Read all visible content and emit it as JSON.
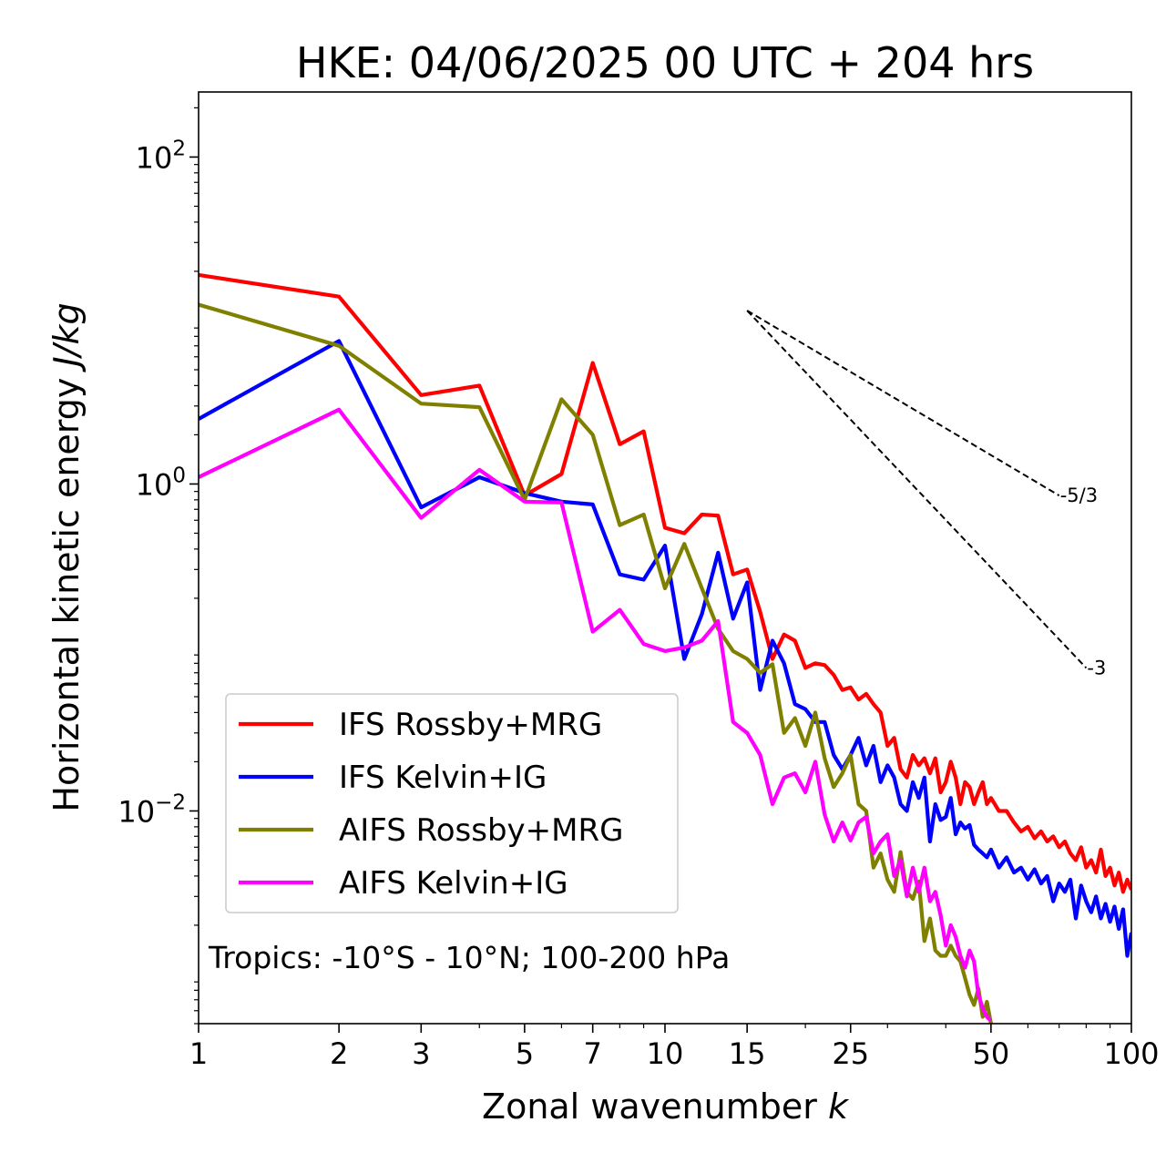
{
  "chart_data": {
    "type": "line",
    "title": "HKE: 04/06/2025 00 UTC + 204 hrs",
    "xlabel": "Zonal wavenumber k",
    "ylabel": "Horizontal kinetic energy J/kg",
    "xscale": "log",
    "yscale": "log",
    "xlim": [
      1,
      100
    ],
    "ylim": [
      0.0005,
      250
    ],
    "x_ticks": [
      1,
      2,
      3,
      5,
      7,
      10,
      15,
      25,
      50,
      100
    ],
    "x_tick_labels": [
      "1",
      "2",
      "3",
      "5",
      "7",
      "10",
      "15",
      "25",
      "50",
      "100"
    ],
    "y_ticks": [
      0.01,
      1,
      100
    ],
    "y_tick_labels": [
      "10^{-2}",
      "10^{0}",
      "10^{2}"
    ],
    "grid": false,
    "legend": "lower-left",
    "annotation": "Tropics: -10°S - 10°N; 100-200 hPa",
    "reference_slopes": [
      {
        "label": "-5/3",
        "x": [
          15,
          70
        ],
        "y": [
          11.5,
          0.85
        ]
      },
      {
        "label": "-3",
        "x": [
          15,
          80
        ],
        "y": [
          11.5,
          0.075
        ]
      }
    ],
    "series": [
      {
        "name": "IFS Rossby+MRG",
        "color": "#ff0000",
        "x": [
          1,
          2,
          3,
          4,
          5,
          6,
          7,
          8,
          9,
          10,
          11,
          12,
          13,
          14,
          15,
          16,
          17,
          18,
          19,
          20,
          21,
          22,
          23,
          24,
          25,
          26,
          27,
          28,
          29,
          30,
          31,
          32,
          33,
          34,
          35,
          36,
          37,
          38,
          39,
          40,
          41,
          42,
          43,
          44,
          45,
          46,
          47,
          48,
          49,
          50,
          52,
          54,
          56,
          58,
          60,
          62,
          64,
          66,
          68,
          70,
          72,
          74,
          76,
          78,
          80,
          82,
          84,
          86,
          88,
          90,
          92,
          94,
          96,
          98,
          100
        ],
        "values": [
          19,
          14,
          3.5,
          4.0,
          0.85,
          1.15,
          5.5,
          1.75,
          2.1,
          0.54,
          0.5,
          0.65,
          0.64,
          0.28,
          0.3,
          0.165,
          0.085,
          0.12,
          0.11,
          0.075,
          0.08,
          0.078,
          0.068,
          0.055,
          0.057,
          0.048,
          0.052,
          0.045,
          0.04,
          0.025,
          0.028,
          0.018,
          0.016,
          0.022,
          0.019,
          0.021,
          0.017,
          0.021,
          0.013,
          0.015,
          0.02,
          0.016,
          0.011,
          0.015,
          0.014,
          0.011,
          0.013,
          0.015,
          0.011,
          0.012,
          0.01,
          0.01,
          0.0085,
          0.0075,
          0.008,
          0.0068,
          0.0075,
          0.0065,
          0.007,
          0.006,
          0.0065,
          0.0055,
          0.005,
          0.006,
          0.0045,
          0.005,
          0.0042,
          0.0058,
          0.004,
          0.0045,
          0.0035,
          0.0042,
          0.0032,
          0.0038,
          0.0033
        ]
      },
      {
        "name": "IFS Kelvin+IG",
        "color": "#0000ff",
        "x": [
          1,
          2,
          3,
          4,
          5,
          6,
          7,
          8,
          9,
          10,
          11,
          12,
          13,
          14,
          15,
          16,
          17,
          18,
          19,
          20,
          21,
          22,
          23,
          24,
          25,
          26,
          27,
          28,
          29,
          30,
          31,
          32,
          33,
          34,
          35,
          36,
          37,
          38,
          39,
          40,
          41,
          42,
          43,
          44,
          45,
          46,
          47,
          48,
          49,
          50,
          52,
          54,
          56,
          58,
          60,
          62,
          64,
          66,
          68,
          70,
          72,
          74,
          76,
          78,
          80,
          82,
          84,
          86,
          88,
          90,
          92,
          94,
          96,
          98,
          100
        ],
        "values": [
          2.5,
          7.5,
          0.72,
          1.1,
          0.88,
          0.78,
          0.75,
          0.28,
          0.26,
          0.42,
          0.085,
          0.16,
          0.38,
          0.15,
          0.25,
          0.055,
          0.11,
          0.08,
          0.045,
          0.042,
          0.035,
          0.035,
          0.022,
          0.018,
          0.022,
          0.028,
          0.019,
          0.025,
          0.015,
          0.019,
          0.016,
          0.011,
          0.01,
          0.015,
          0.012,
          0.016,
          0.0065,
          0.011,
          0.0088,
          0.0092,
          0.012,
          0.0072,
          0.0085,
          0.0078,
          0.0082,
          0.0062,
          0.0058,
          0.0055,
          0.0052,
          0.0058,
          0.0045,
          0.0052,
          0.0042,
          0.0045,
          0.0038,
          0.0044,
          0.0036,
          0.004,
          0.0028,
          0.0036,
          0.0032,
          0.0038,
          0.0022,
          0.0035,
          0.0028,
          0.0024,
          0.003,
          0.0022,
          0.0027,
          0.0021,
          0.0026,
          0.0019,
          0.0025,
          0.0013,
          0.0018
        ]
      },
      {
        "name": "AIFS Rossby+MRG",
        "color": "#808000",
        "x": [
          1,
          2,
          3,
          4,
          5,
          6,
          7,
          8,
          9,
          10,
          11,
          12,
          13,
          14,
          15,
          16,
          17,
          18,
          19,
          20,
          21,
          22,
          23,
          24,
          25,
          26,
          27,
          28,
          29,
          30,
          31,
          32,
          33,
          34,
          35,
          36,
          37,
          38,
          39,
          40,
          41,
          42,
          43,
          44,
          45,
          46,
          47,
          48,
          49,
          50
        ],
        "values": [
          12.5,
          7.0,
          3.1,
          2.95,
          0.8,
          3.3,
          2.0,
          0.56,
          0.65,
          0.23,
          0.43,
          0.23,
          0.13,
          0.095,
          0.085,
          0.07,
          0.079,
          0.03,
          0.037,
          0.025,
          0.04,
          0.021,
          0.014,
          0.017,
          0.022,
          0.011,
          0.01,
          0.0045,
          0.0055,
          0.0038,
          0.0032,
          0.0056,
          0.0032,
          0.0029,
          0.0037,
          0.0016,
          0.0022,
          0.0014,
          0.0013,
          0.0013,
          0.0015,
          0.0013,
          0.0012,
          0.00095,
          0.00075,
          0.00065,
          0.00082,
          0.00055,
          0.00068,
          0.0005
        ]
      },
      {
        "name": "AIFS Kelvin+IG",
        "color": "#ff00ff",
        "x": [
          1,
          2,
          3,
          4,
          5,
          6,
          7,
          8,
          9,
          10,
          11,
          12,
          13,
          14,
          15,
          16,
          17,
          18,
          19,
          20,
          21,
          22,
          23,
          24,
          25,
          26,
          27,
          28,
          29,
          30,
          31,
          32,
          33,
          34,
          35,
          36,
          37,
          38,
          39,
          40,
          41,
          42,
          43,
          44,
          45,
          46,
          47,
          48,
          49,
          50
        ],
        "values": [
          1.1,
          2.85,
          0.62,
          1.22,
          0.78,
          0.77,
          0.125,
          0.17,
          0.105,
          0.095,
          0.1,
          0.11,
          0.145,
          0.035,
          0.03,
          0.022,
          0.011,
          0.016,
          0.017,
          0.013,
          0.02,
          0.0095,
          0.0065,
          0.0085,
          0.0066,
          0.0085,
          0.0092,
          0.0055,
          0.0065,
          0.0072,
          0.004,
          0.005,
          0.003,
          0.0045,
          0.0032,
          0.0045,
          0.0028,
          0.0032,
          0.0023,
          0.0015,
          0.002,
          0.0017,
          0.0013,
          0.0011,
          0.0014,
          0.0012,
          0.00075,
          0.00062,
          0.00055,
          0.00052
        ]
      }
    ]
  }
}
